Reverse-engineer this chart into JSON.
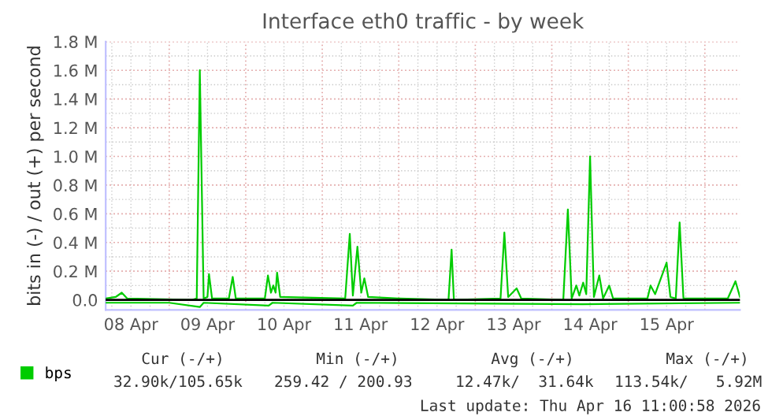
{
  "chart_data": {
    "type": "line",
    "title": "Interface eth0 traffic - by week",
    "ylabel": "bits in (-) / out (+) per second",
    "series": [
      {
        "name": "bps",
        "color": "#00cc00",
        "x": [
          "2026-04-08T04:05",
          "2026-04-08T07:12",
          "2026-04-08T09:07",
          "2026-04-08T10:48",
          "2026-04-09T07:12",
          "2026-04-09T08:38",
          "2026-04-09T09:36",
          "2026-04-09T10:48",
          "2026-04-09T12:00",
          "2026-04-09T12:29",
          "2026-04-09T13:26",
          "2026-04-09T18:43",
          "2026-04-09T19:55",
          "2026-04-09T20:53",
          "2026-04-10T06:00",
          "2026-04-10T06:58",
          "2026-04-10T07:55",
          "2026-04-10T08:38",
          "2026-04-10T09:22",
          "2026-04-10T09:50",
          "2026-04-10T10:48",
          "2026-04-11T07:12",
          "2026-04-11T08:38",
          "2026-04-11T09:36",
          "2026-04-11T11:02",
          "2026-04-11T12:14",
          "2026-04-11T13:12",
          "2026-04-11T14:24",
          "2026-04-12T00:00",
          "2026-04-12T15:36",
          "2026-04-12T16:34",
          "2026-04-12T17:17",
          "2026-04-13T07:55",
          "2026-04-13T09:07",
          "2026-04-13T10:19",
          "2026-04-13T12:58",
          "2026-04-13T14:24",
          "2026-04-14T03:36",
          "2026-04-14T05:02",
          "2026-04-14T06:14",
          "2026-04-14T07:41",
          "2026-04-14T08:38",
          "2026-04-14T09:50",
          "2026-04-14T10:48",
          "2026-04-14T12:00",
          "2026-04-14T13:12",
          "2026-04-14T14:53",
          "2026-04-14T16:05",
          "2026-04-14T18:00",
          "2026-04-14T19:12",
          "2026-04-15T06:00",
          "2026-04-15T06:58",
          "2026-04-15T08:24",
          "2026-04-15T12:00",
          "2026-04-15T13:12",
          "2026-04-15T14:53",
          "2026-04-15T16:05",
          "2026-04-15T17:17",
          "2026-04-16T07:12",
          "2026-04-16T09:36",
          "2026-04-16T11:00"
        ],
        "values": [
          0.01,
          0.02,
          0.05,
          0.01,
          0.0,
          0.01,
          1.6,
          0.01,
          0.02,
          0.18,
          0.01,
          0.01,
          0.16,
          0.01,
          0.01,
          0.17,
          0.05,
          0.1,
          0.05,
          0.19,
          0.02,
          0.01,
          0.46,
          0.03,
          0.37,
          0.05,
          0.15,
          0.02,
          0.01,
          0.0,
          0.35,
          0.0,
          0.01,
          0.47,
          0.02,
          0.08,
          0.01,
          0.0,
          0.63,
          0.01,
          0.1,
          0.03,
          0.12,
          0.04,
          1.0,
          0.02,
          0.17,
          0.01,
          0.1,
          0.01,
          0.01,
          0.1,
          0.04,
          0.26,
          0.02,
          0.01,
          0.54,
          0.01,
          0.01,
          0.13,
          0.02
        ]
      },
      {
        "color": "#00cc00",
        "x": [
          "2026-04-08T04:05",
          "2026-04-09T00:00",
          "2026-04-09T09:36",
          "2026-04-09T10:48",
          "2026-04-10T07:12",
          "2026-04-10T08:24",
          "2026-04-11T09:36",
          "2026-04-11T10:48",
          "2026-04-14T09:36",
          "2026-04-16T11:00"
        ],
        "values": [
          -0.02,
          -0.02,
          -0.05,
          -0.02,
          -0.04,
          -0.02,
          -0.04,
          -0.02,
          -0.03,
          -0.02
        ]
      }
    ],
    "xlim": [
      "2026-04-08T04:05",
      "2026-04-16T11:00"
    ],
    "xticks": [
      {
        "value": "2026-04-08T12:00",
        "label": "08 Apr"
      },
      {
        "value": "2026-04-09T12:00",
        "label": "09 Apr"
      },
      {
        "value": "2026-04-10T12:00",
        "label": "10 Apr"
      },
      {
        "value": "2026-04-11T12:00",
        "label": "11 Apr"
      },
      {
        "value": "2026-04-12T12:00",
        "label": "12 Apr"
      },
      {
        "value": "2026-04-13T12:00",
        "label": "13 Apr"
      },
      {
        "value": "2026-04-14T12:00",
        "label": "14 Apr"
      },
      {
        "value": "2026-04-15T12:00",
        "label": "15 Apr"
      }
    ],
    "ylim": [
      -0.07,
      1.8
    ],
    "yticks": [
      {
        "value": 0,
        "label": "0.0"
      },
      {
        "value": 0.2,
        "label": "0.2 M"
      },
      {
        "value": 0.4,
        "label": "0.4 M"
      },
      {
        "value": 0.6,
        "label": "0.6 M"
      },
      {
        "value": 0.8,
        "label": "0.8 M"
      },
      {
        "value": 1.0,
        "label": "1.0 M"
      },
      {
        "value": 1.2,
        "label": "1.2 M"
      },
      {
        "value": 1.4,
        "label": "1.4 M"
      },
      {
        "value": 1.6,
        "label": "1.6 M"
      },
      {
        "value": 1.8,
        "label": "1.8 M"
      }
    ],
    "ref_lines": [
      {
        "axis": "y",
        "value": 0,
        "color": "#000000"
      }
    ],
    "grid": true,
    "legend": "bottom left",
    "line_style": "solid",
    "marker": "none",
    "annotations": [
      "Cur (-/+)",
      "Min (-/+)",
      "Avg (-/+)",
      "Max (-/+)",
      "32.90k/105.65k",
      "259.42 / 200.93",
      "12.47k/  31.64k",
      "113.54k/   5.92M",
      "Last update: Thu Apr 16 11:00:58 2026"
    ]
  }
}
